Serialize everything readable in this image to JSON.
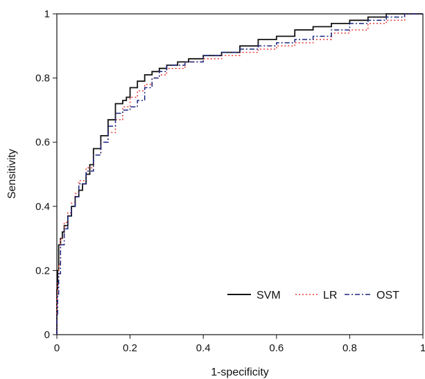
{
  "chart_data": {
    "type": "line",
    "xlabel": "1-specificity",
    "ylabel": "Sensitivity",
    "xlim": [
      0,
      1
    ],
    "ylim": [
      0,
      1
    ],
    "xticks": [
      "0",
      "0.2",
      "0.4",
      "0.6",
      "0.8",
      "1"
    ],
    "yticks": [
      "0",
      "0.2",
      "0.4",
      "0.6",
      "0.8",
      "1"
    ],
    "grid": false,
    "legend_position": "bottom-right",
    "series": [
      {
        "name": "SVM",
        "color": "#111111",
        "style": "solid",
        "x": [
          0,
          0.002,
          0.005,
          0.01,
          0.015,
          0.02,
          0.03,
          0.04,
          0.05,
          0.06,
          0.07,
          0.08,
          0.09,
          0.1,
          0.12,
          0.14,
          0.16,
          0.18,
          0.19,
          0.2,
          0.22,
          0.24,
          0.26,
          0.28,
          0.3,
          0.33,
          0.36,
          0.4,
          0.45,
          0.5,
          0.55,
          0.6,
          0.65,
          0.7,
          0.75,
          0.8,
          0.85,
          0.9,
          0.95,
          1.0
        ],
        "y": [
          0.0,
          0.14,
          0.2,
          0.28,
          0.3,
          0.32,
          0.34,
          0.37,
          0.4,
          0.43,
          0.45,
          0.47,
          0.5,
          0.53,
          0.58,
          0.62,
          0.67,
          0.72,
          0.73,
          0.74,
          0.77,
          0.79,
          0.81,
          0.82,
          0.83,
          0.84,
          0.85,
          0.86,
          0.87,
          0.88,
          0.9,
          0.92,
          0.93,
          0.95,
          0.96,
          0.97,
          0.98,
          0.99,
          1.0,
          1.0
        ]
      },
      {
        "name": "LR",
        "color": "#e53935",
        "style": "dotted",
        "x": [
          0,
          0.002,
          0.005,
          0.01,
          0.02,
          0.03,
          0.04,
          0.05,
          0.06,
          0.08,
          0.1,
          0.12,
          0.14,
          0.16,
          0.18,
          0.2,
          0.22,
          0.24,
          0.26,
          0.28,
          0.3,
          0.35,
          0.4,
          0.45,
          0.5,
          0.55,
          0.6,
          0.65,
          0.7,
          0.75,
          0.8,
          0.85,
          0.9,
          0.95,
          1.0
        ],
        "y": [
          0.0,
          0.12,
          0.16,
          0.22,
          0.3,
          0.35,
          0.38,
          0.41,
          0.44,
          0.48,
          0.52,
          0.56,
          0.6,
          0.63,
          0.67,
          0.71,
          0.74,
          0.76,
          0.78,
          0.8,
          0.81,
          0.83,
          0.85,
          0.86,
          0.87,
          0.88,
          0.89,
          0.9,
          0.91,
          0.92,
          0.94,
          0.95,
          0.97,
          0.98,
          1.0
        ]
      },
      {
        "name": "OST",
        "color": "#1a237e",
        "style": "dashdot",
        "x": [
          0,
          0.002,
          0.005,
          0.01,
          0.02,
          0.03,
          0.04,
          0.05,
          0.06,
          0.08,
          0.1,
          0.12,
          0.14,
          0.16,
          0.18,
          0.2,
          0.22,
          0.24,
          0.26,
          0.28,
          0.3,
          0.35,
          0.4,
          0.45,
          0.5,
          0.55,
          0.6,
          0.65,
          0.7,
          0.75,
          0.8,
          0.85,
          0.9,
          0.95,
          1.0
        ],
        "y": [
          0.0,
          0.06,
          0.12,
          0.19,
          0.28,
          0.33,
          0.37,
          0.4,
          0.43,
          0.47,
          0.51,
          0.56,
          0.6,
          0.65,
          0.69,
          0.7,
          0.71,
          0.73,
          0.77,
          0.8,
          0.82,
          0.84,
          0.85,
          0.87,
          0.88,
          0.89,
          0.9,
          0.91,
          0.92,
          0.93,
          0.95,
          0.97,
          0.98,
          0.99,
          1.0
        ]
      }
    ]
  }
}
